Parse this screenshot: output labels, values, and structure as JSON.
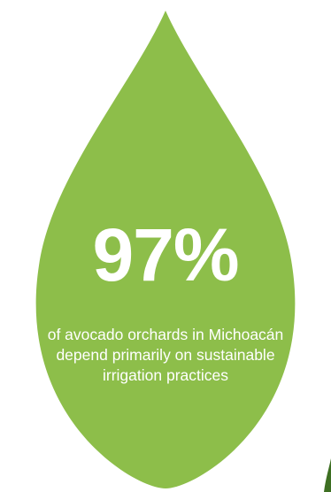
{
  "infographic": {
    "stat_value": "97%",
    "stat_caption": "of avocado orchards in Michoacán depend primarily on sustainable irrigation practices",
    "drop_color": "#8dbe4a",
    "accent_color": "#3d6f22",
    "icon": "water-drop-icon"
  }
}
